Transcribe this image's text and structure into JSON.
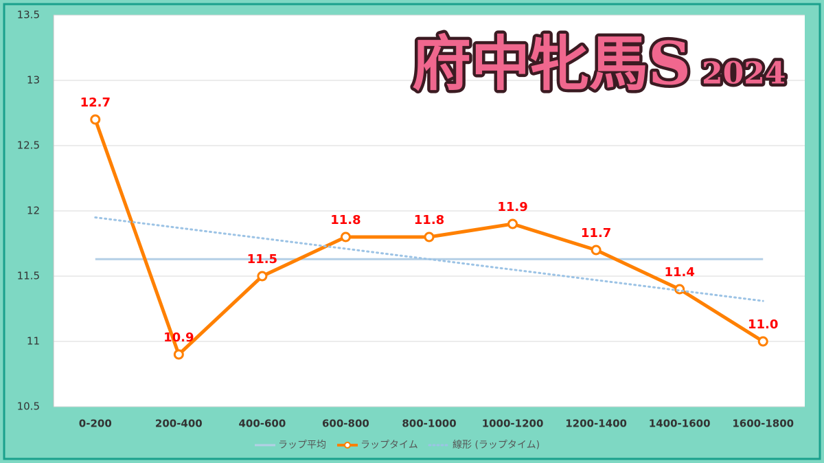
{
  "chart_data": {
    "type": "line",
    "title": "府中牝馬S",
    "subtitle": "2024",
    "categories": [
      "0-200",
      "200-400",
      "400-600",
      "600-800",
      "800-1000",
      "1000-1200",
      "1200-1400",
      "1400-1600",
      "1600-1800"
    ],
    "series": [
      {
        "name": "ラップ平均",
        "color": "#b4cfe6",
        "style": "solid",
        "values": [
          11.63,
          11.63,
          11.63,
          11.63,
          11.63,
          11.63,
          11.63,
          11.63,
          11.63
        ]
      },
      {
        "name": "ラップタイム",
        "color": "#ff8000",
        "style": "marker",
        "values": [
          12.7,
          10.9,
          11.5,
          11.8,
          11.8,
          11.9,
          11.7,
          11.4,
          11.0
        ],
        "value_labels": [
          "12.7",
          "10.9",
          "11.5",
          "11.8",
          "11.8",
          "11.9",
          "11.7",
          "11.4",
          "11.0"
        ]
      },
      {
        "name": "線形 (ラップタイム)",
        "color": "#9cc3e5",
        "style": "dotted",
        "values": [
          11.95,
          11.87,
          11.79,
          11.71,
          11.63,
          11.55,
          11.47,
          11.39,
          11.31
        ]
      }
    ],
    "ylim": [
      10.5,
      13.5
    ],
    "yticks": [
      10.5,
      11,
      11.5,
      12,
      12.5,
      13,
      13.5
    ],
    "grid": true,
    "legend": "bottom"
  }
}
